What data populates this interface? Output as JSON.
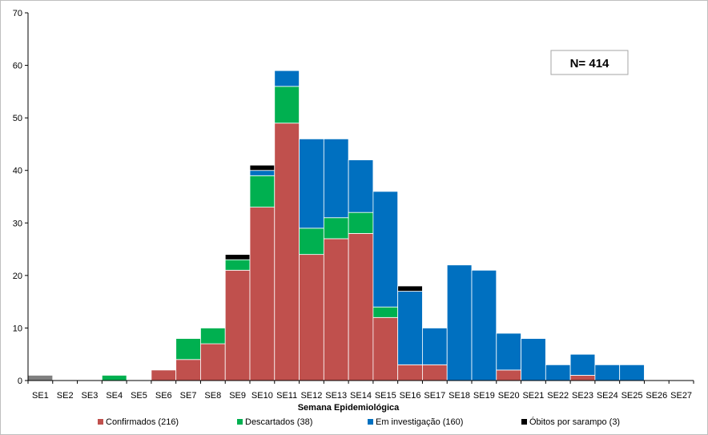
{
  "chart_data": {
    "type": "bar",
    "stacked": true,
    "title": "",
    "xlabel": "Semana Epidemiológica",
    "ylabel": "",
    "ylim": [
      0,
      70
    ],
    "yticks": [
      0,
      10,
      20,
      30,
      40,
      50,
      60,
      70
    ],
    "grid": false,
    "legend_position": "bottom",
    "annotation": "N= 414",
    "categories": [
      "SE1",
      "SE2",
      "SE3",
      "SE4",
      "SE5",
      "SE6",
      "SE7",
      "SE8",
      "SE9",
      "SE10",
      "SE11",
      "SE12",
      "SE13",
      "SE14",
      "SE15",
      "SE16",
      "SE17",
      "SE18",
      "SE19",
      "SE20",
      "SE21",
      "SE22",
      "SE23",
      "SE24",
      "SE25",
      "SE26",
      "SE27"
    ],
    "series": [
      {
        "name": "Confirmados (216)",
        "color": "#c0504d",
        "values": [
          0,
          0,
          0,
          0,
          0,
          2,
          4,
          7,
          21,
          33,
          49,
          24,
          27,
          28,
          12,
          3,
          3,
          0,
          0,
          2,
          0,
          0,
          1,
          0,
          0,
          0,
          0
        ]
      },
      {
        "name": "Descartados (38)",
        "color": "#00b050",
        "values": [
          0,
          0,
          0,
          1,
          0,
          0,
          4,
          3,
          2,
          6,
          7,
          5,
          4,
          4,
          2,
          0,
          0,
          0,
          0,
          0,
          0,
          0,
          0,
          0,
          0,
          0,
          0
        ]
      },
      {
        "name": "Em investigação (160)",
        "color": "#0070c0",
        "values": [
          0,
          0,
          0,
          0,
          0,
          0,
          0,
          0,
          0,
          1,
          3,
          17,
          15,
          10,
          22,
          14,
          7,
          22,
          21,
          7,
          8,
          3,
          4,
          3,
          3,
          0,
          0
        ]
      },
      {
        "name": "Óbitos por sarampo (3)",
        "color": "#000000",
        "values": [
          0,
          0,
          0,
          0,
          0,
          0,
          0,
          0,
          1,
          1,
          0,
          0,
          0,
          0,
          0,
          1,
          0,
          0,
          0,
          0,
          0,
          0,
          0,
          0,
          0,
          0,
          0
        ]
      }
    ],
    "other": {
      "color": "#808080",
      "values": [
        1,
        0,
        0,
        0,
        0,
        0,
        0,
        0,
        0,
        0,
        0,
        0,
        0,
        0,
        0,
        0,
        0,
        0,
        0,
        0,
        0,
        0,
        0,
        0,
        0,
        0,
        0
      ]
    }
  }
}
